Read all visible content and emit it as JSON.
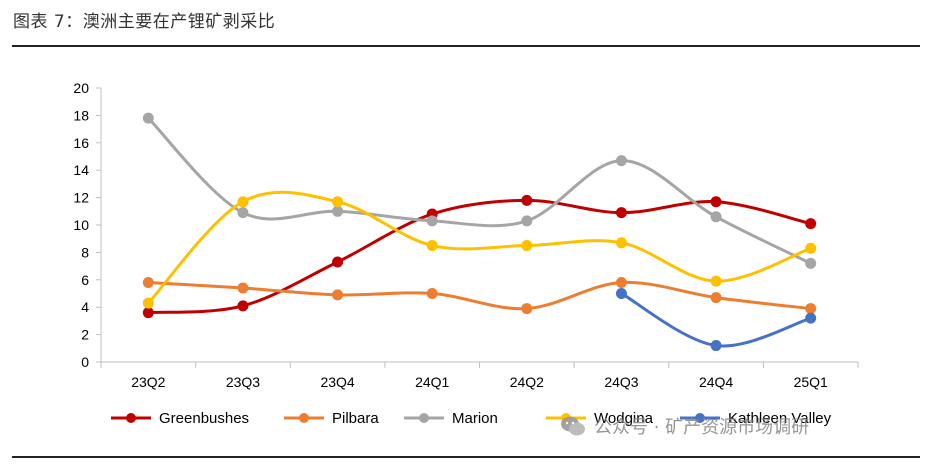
{
  "page": {
    "title": "图表 7：澳洲主要在产锂矿剥采比",
    "watermark": "公众号 · 矿产资源市场调研"
  },
  "chart_data": {
    "type": "line",
    "title": "图表 7：澳洲主要在产锂矿剥采比",
    "xlabel": "",
    "ylabel": "",
    "categories": [
      "23Q2",
      "23Q3",
      "23Q4",
      "24Q1",
      "24Q2",
      "24Q3",
      "24Q4",
      "25Q1"
    ],
    "ylim": [
      0,
      20
    ],
    "yticks": [
      0,
      2,
      4,
      6,
      8,
      10,
      12,
      14,
      16,
      18,
      20
    ],
    "grid": false,
    "legend_position": "bottom",
    "series": [
      {
        "name": "Greenbushes",
        "color": "#C00000",
        "values": [
          3.6,
          4.1,
          7.3,
          10.8,
          11.8,
          10.9,
          11.7,
          10.1
        ]
      },
      {
        "name": "Pilbara",
        "color": "#ED7D31",
        "values": [
          5.8,
          5.4,
          4.9,
          5.0,
          3.9,
          5.8,
          4.7,
          3.9
        ]
      },
      {
        "name": "Marion",
        "color": "#A5A5A5",
        "values": [
          17.8,
          10.9,
          11.0,
          10.3,
          10.3,
          14.7,
          10.6,
          7.2
        ]
      },
      {
        "name": "Wodgina",
        "color": "#FFC000",
        "values": [
          4.3,
          11.7,
          11.7,
          8.5,
          8.5,
          8.7,
          5.9,
          8.3
        ]
      },
      {
        "name": "Kathleen Valley",
        "color": "#4472C4",
        "values": [
          null,
          null,
          null,
          null,
          null,
          5.0,
          1.2,
          3.2
        ]
      }
    ]
  }
}
